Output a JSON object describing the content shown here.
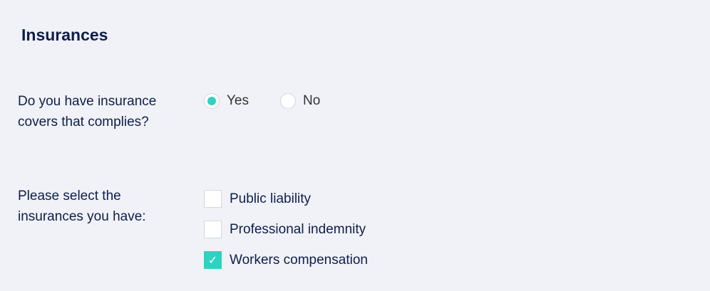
{
  "title": "Insurances",
  "q1": {
    "label": "Do you have insurance covers that complies?",
    "options": [
      {
        "label": "Yes",
        "selected": true
      },
      {
        "label": "No",
        "selected": false
      }
    ]
  },
  "q2": {
    "label": "Please select the insurances you have:",
    "options": [
      {
        "label": "Public liability",
        "checked": false
      },
      {
        "label": "Professional indemnity",
        "checked": false
      },
      {
        "label": "Workers compensation",
        "checked": true
      }
    ]
  },
  "colors": {
    "accent": "#2ed3bf",
    "text": "#0f1e4a"
  }
}
